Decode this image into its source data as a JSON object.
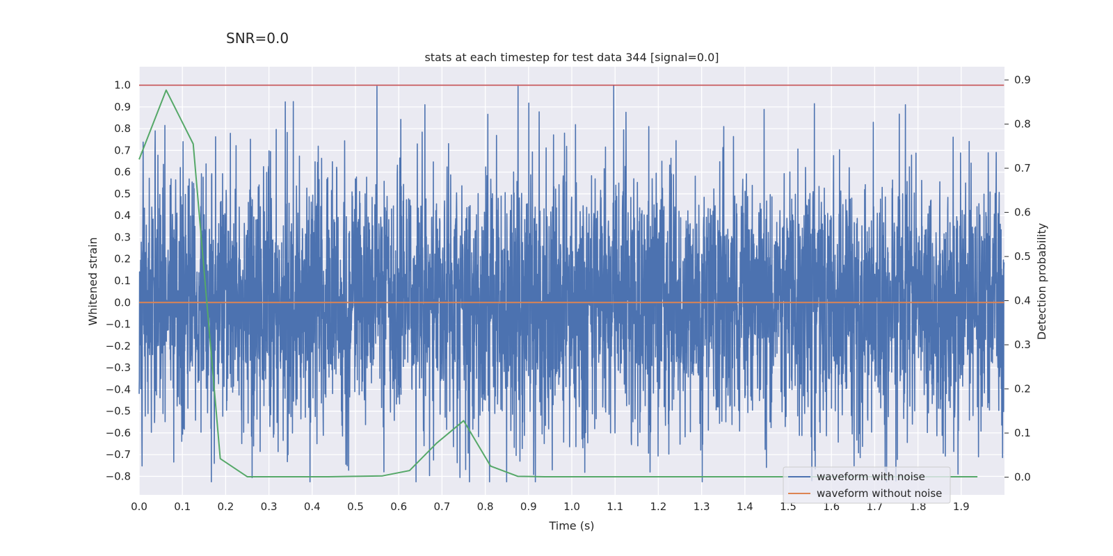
{
  "suptitle": "SNR=0.0",
  "chart_data": {
    "type": "line",
    "title": "stats at each timestep for test data 344 [signal=0.0]",
    "xlabel": "Time (s)",
    "ylabel": "Whitened strain",
    "ylabel_right": "Detection probability",
    "xlim": [
      0.0,
      2.0
    ],
    "ylim": [
      -0.885,
      1.085
    ],
    "ylim_right": [
      -0.04,
      0.93
    ],
    "x_ticks": [
      0.0,
      0.1,
      0.2,
      0.3,
      0.4,
      0.5,
      0.6,
      0.7,
      0.8,
      0.9,
      1.0,
      1.1,
      1.2,
      1.3,
      1.4,
      1.5,
      1.6,
      1.7,
      1.8,
      1.9
    ],
    "x_tick_labels": [
      "0.0",
      "0.1",
      "0.2",
      "0.3",
      "0.4",
      "0.5",
      "0.6",
      "0.7",
      "0.8",
      "0.9",
      "1.0",
      "1.1",
      "1.2",
      "1.3",
      "1.4",
      "1.5",
      "1.6",
      "1.7",
      "1.8",
      "1.9"
    ],
    "y_ticks": [
      1.0,
      0.9,
      0.8,
      0.7,
      0.6,
      0.5,
      0.4,
      0.3,
      0.2,
      0.1,
      0.0,
      -0.1,
      -0.2,
      -0.3,
      -0.4,
      -0.5,
      -0.6,
      -0.7,
      -0.8
    ],
    "y_tick_labels": [
      "1.0",
      "0.9",
      "0.8",
      "0.7",
      "0.6",
      "0.5",
      "0.4",
      "0.3",
      "0.2",
      "0.1",
      "0.0",
      "−0.1",
      "−0.2",
      "−0.3",
      "−0.4",
      "−0.5",
      "−0.6",
      "−0.7",
      "−0.8"
    ],
    "y_ticks_right": [
      0.9,
      0.8,
      0.7,
      0.6,
      0.5,
      0.4,
      0.3,
      0.2,
      0.1,
      0.0
    ],
    "y_tick_labels_right": [
      "0.9",
      "0.8",
      "0.7",
      "0.6",
      "0.5",
      "0.4",
      "0.3",
      "0.2",
      "0.1",
      "0.0"
    ],
    "grid": true,
    "legend_position": "bottom-right",
    "series": [
      {
        "name": "waveform with noise",
        "axis": "left",
        "color": "#4c72b0",
        "description": "dense noisy whitened strain, 4096 samples over 2 s",
        "x_range": [
          0.0,
          1.999
        ],
        "n_points": 4096,
        "typical_range": [
          -0.45,
          0.45
        ],
        "extremes": [
          {
            "x": 0.037,
            "y": 0.79
          },
          {
            "x": 1.097,
            "y": 1.0
          },
          {
            "x": 1.1,
            "y": -0.6
          },
          {
            "x": 1.178,
            "y": 0.81
          },
          {
            "x": 1.181,
            "y": -0.78
          },
          {
            "x": 1.351,
            "y": 0.81
          },
          {
            "x": 1.555,
            "y": -0.82
          },
          {
            "x": 1.771,
            "y": 0.91
          },
          {
            "x": 1.94,
            "y": -0.71
          },
          {
            "x": 0.955,
            "y": -0.77
          },
          {
            "x": 0.88,
            "y": -0.73
          },
          {
            "x": 0.344,
            "y": -0.7
          }
        ]
      },
      {
        "name": "waveform without noise",
        "axis": "left",
        "color": "#dd8452",
        "x": [
          0.0,
          1.999
        ],
        "y": [
          0.0,
          0.0
        ]
      },
      {
        "name": "detection probability",
        "axis": "right",
        "color": "#55a868",
        "x": [
          0.0,
          0.0625,
          0.125,
          0.1875,
          0.25,
          0.3125,
          0.375,
          0.4375,
          0.5,
          0.5625,
          0.625,
          0.6875,
          0.75,
          0.8125,
          0.875,
          0.9375,
          1.0,
          1.5,
          1.9375
        ],
        "y": [
          0.72,
          0.877,
          0.755,
          0.042,
          0.001,
          0.001,
          0.001,
          0.001,
          0.002,
          0.003,
          0.015,
          0.077,
          0.128,
          0.025,
          0.002,
          0.001,
          0.001,
          0.001,
          0.001
        ]
      },
      {
        "name": "threshold",
        "axis": "left",
        "color": "#c44e52",
        "x": [
          0.0,
          1.999
        ],
        "y": [
          1.0,
          1.0
        ]
      }
    ],
    "legend": [
      {
        "label": "waveform with noise",
        "color": "#4c72b0"
      },
      {
        "label": "waveform without noise",
        "color": "#dd8452"
      }
    ]
  }
}
